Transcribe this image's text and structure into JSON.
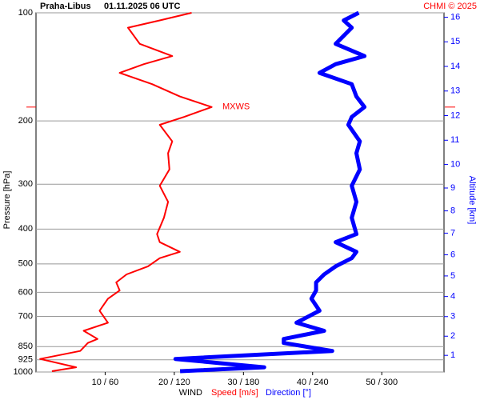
{
  "chart_data": {
    "type": "line",
    "title": "Praha-Libus",
    "subtitle": "01.11.2025 06 UTC",
    "credit": "CHMI © 2025",
    "ylabel": "Pressure [hPa]",
    "y2label": "Altitude [km]",
    "xlabel": "WIND",
    "xlabel_speed": "Speed [m/s]",
    "xlabel_direction": "Direction [°]",
    "ylog": true,
    "ylim": [
      1000,
      100
    ],
    "yticks": [
      100,
      200,
      300,
      400,
      500,
      600,
      700,
      850,
      925,
      1000
    ],
    "grid": true,
    "y2ticks": [
      1,
      2,
      3,
      4,
      5,
      6,
      7,
      8,
      9,
      10,
      11,
      12,
      13,
      14,
      15,
      16
    ],
    "xlim": [
      0,
      59
    ],
    "xticks": [
      {
        "value": 10,
        "label": "10 / 60"
      },
      {
        "value": 20,
        "label": "20 / 120"
      },
      {
        "value": 30,
        "label": "30 / 180"
      },
      {
        "value": 40,
        "label": "40 / 240"
      },
      {
        "value": 50,
        "label": "50 / 300"
      }
    ],
    "annotation": {
      "text": "MXWS",
      "pressure": 183
    },
    "pressure": [
      995,
      970,
      920,
      874,
      830,
      809,
      768,
      729,
      675,
      625,
      593,
      563,
      535,
      508,
      482,
      463,
      435,
      413,
      372,
      336,
      303,
      273,
      246,
      228,
      205,
      195,
      183,
      171,
      158,
      147,
      139,
      132,
      122,
      110,
      105,
      100
    ],
    "series": [
      {
        "name": "Speed [m/s]",
        "color": "#ff0000",
        "xlim": [
          0,
          59
        ],
        "width": 2,
        "values": [
          2.3,
          5.8,
          0.6,
          6.4,
          7.5,
          8.9,
          6.9,
          10.4,
          9.2,
          10.4,
          12.1,
          11.6,
          13.1,
          16.2,
          17.9,
          20.8,
          17.9,
          17.5,
          18.5,
          19.1,
          17.9,
          19.3,
          19.1,
          19.7,
          17.9,
          21.4,
          25.4,
          20.8,
          16.8,
          12.1,
          15.6,
          19.7,
          15,
          13.3,
          17.9,
          22.5
        ]
      },
      {
        "name": "Direction [°]",
        "color": "#0000ff",
        "xlim": [
          0,
          354
        ],
        "width": 5,
        "values": [
          125,
          198,
          121,
          257,
          215,
          215,
          250,
          226,
          246,
          239,
          243,
          243,
          250,
          260,
          274,
          278,
          260,
          278,
          274,
          278,
          274,
          281,
          278,
          281,
          271,
          274,
          285,
          278,
          274,
          246,
          260,
          285,
          260,
          274,
          267,
          280
        ]
      }
    ]
  }
}
